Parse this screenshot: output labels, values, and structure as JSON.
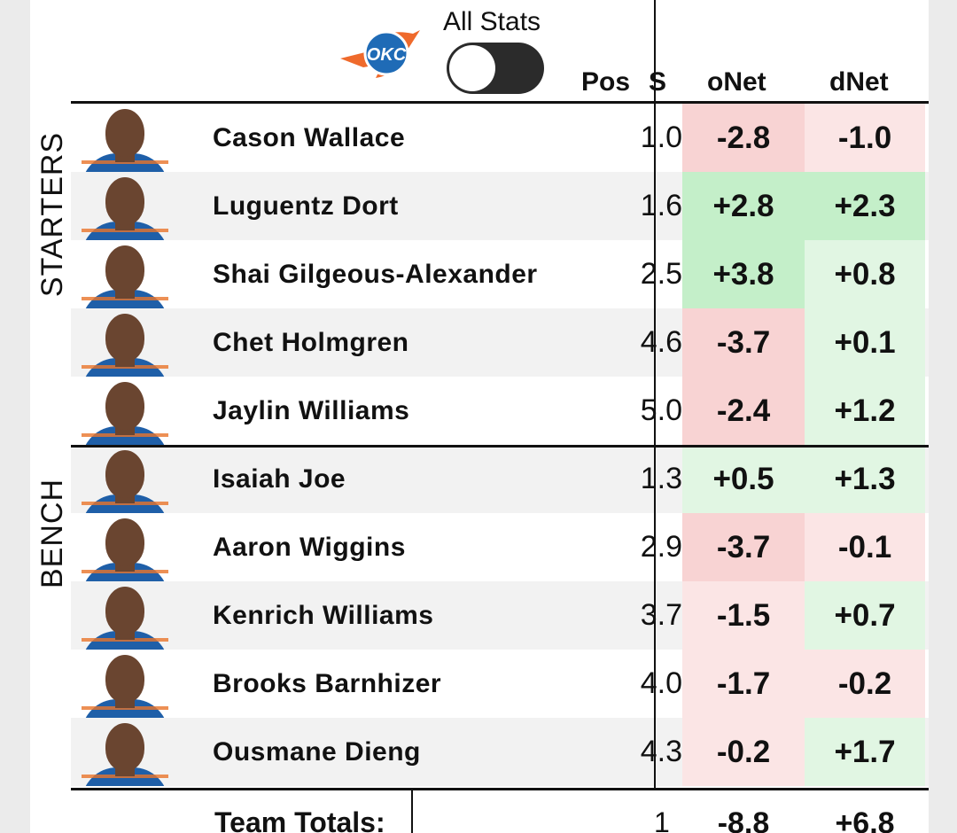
{
  "header": {
    "toggle_label": "All Stats",
    "toggle_on": false,
    "columns": {
      "pos": "Pos",
      "s_partial": "S",
      "onet": "oNet",
      "dnet": "dNet"
    }
  },
  "groups": {
    "starters_label": "STARTERS",
    "bench_label": "BENCH"
  },
  "colors": {
    "neg_strong": "#f8d3d3",
    "neg_light": "#fbe5e5",
    "pos_strong": "#c4efc9",
    "pos_light": "#e1f6e3",
    "toggle_track": "#2b2b2b",
    "logo_blue": "#1f6bb6",
    "logo_orange": "#ef6a2c"
  },
  "players": [
    {
      "name": "Cason Wallace",
      "pos": "1.0",
      "onet": "-2.8",
      "dnet": "-1.0",
      "onet_bg": "neg_strong",
      "dnet_bg": "neg_light",
      "group": "starters"
    },
    {
      "name": "Luguentz Dort",
      "pos": "1.6",
      "onet": "+2.8",
      "dnet": "+2.3",
      "onet_bg": "pos_strong",
      "dnet_bg": "pos_strong",
      "group": "starters"
    },
    {
      "name": "Shai Gilgeous-Alexander",
      "pos": "2.5",
      "onet": "+3.8",
      "dnet": "+0.8",
      "onet_bg": "pos_strong",
      "dnet_bg": "pos_light",
      "group": "starters"
    },
    {
      "name": "Chet Holmgren",
      "pos": "4.6",
      "onet": "-3.7",
      "dnet": "+0.1",
      "onet_bg": "neg_strong",
      "dnet_bg": "pos_light",
      "group": "starters"
    },
    {
      "name": "Jaylin Williams",
      "pos": "5.0",
      "onet": "-2.4",
      "dnet": "+1.2",
      "onet_bg": "neg_strong",
      "dnet_bg": "pos_light",
      "group": "starters"
    },
    {
      "name": "Isaiah Joe",
      "pos": "1.3",
      "onet": "+0.5",
      "dnet": "+1.3",
      "onet_bg": "pos_light",
      "dnet_bg": "pos_light",
      "group": "bench"
    },
    {
      "name": "Aaron Wiggins",
      "pos": "2.9",
      "onet": "-3.7",
      "dnet": "-0.1",
      "onet_bg": "neg_strong",
      "dnet_bg": "neg_light",
      "group": "bench"
    },
    {
      "name": "Kenrich Williams",
      "pos": "3.7",
      "onet": "-1.5",
      "dnet": "+0.7",
      "onet_bg": "neg_light",
      "dnet_bg": "pos_light",
      "group": "bench"
    },
    {
      "name": "Brooks Barnhizer",
      "pos": "4.0",
      "onet": "-1.7",
      "dnet": "-0.2",
      "onet_bg": "neg_light",
      "dnet_bg": "neg_light",
      "group": "bench"
    },
    {
      "name": "Ousmane Dieng",
      "pos": "4.3",
      "onet": "-0.2",
      "dnet": "+1.7",
      "onet_bg": "neg_light",
      "dnet_bg": "pos_light",
      "group": "bench"
    }
  ],
  "totals": {
    "label": "Team Totals:",
    "mid_partial": "1",
    "onet": "-8.8",
    "dnet": "+6.8"
  }
}
